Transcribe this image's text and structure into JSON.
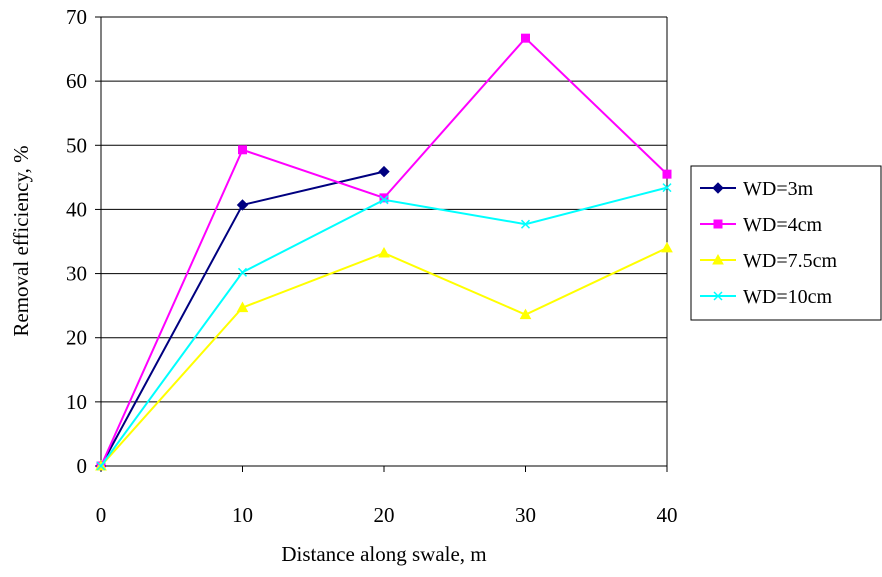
{
  "chart_data": {
    "type": "line",
    "title": "",
    "xlabel": "Distance along swale, m",
    "ylabel": "Removal efficiency, %",
    "xlim": [
      0,
      40
    ],
    "ylim": [
      0,
      70
    ],
    "x_ticks": [
      0,
      10,
      20,
      30,
      40
    ],
    "y_ticks": [
      0,
      10,
      20,
      30,
      40,
      50,
      60,
      70
    ],
    "grid": "horizontal",
    "legend_position": "right",
    "series": [
      {
        "name": "WD=3m",
        "color": "#000080",
        "marker": "diamond",
        "x": [
          0,
          10,
          20
        ],
        "y": [
          0,
          40.7,
          45.9
        ]
      },
      {
        "name": "WD=4cm",
        "color": "#ff00ff",
        "marker": "square",
        "x": [
          0,
          10,
          20,
          30,
          40
        ],
        "y": [
          0,
          49.3,
          41.8,
          66.7,
          45.5
        ]
      },
      {
        "name": "WD=7.5cm",
        "color": "#ffff00",
        "marker": "triangle",
        "x": [
          0,
          10,
          20,
          30,
          40
        ],
        "y": [
          0,
          24.7,
          33.2,
          23.6,
          34.0
        ]
      },
      {
        "name": "WD=10cm",
        "color": "#00ffff",
        "marker": "x",
        "x": [
          0,
          10,
          20,
          30,
          40
        ],
        "y": [
          0,
          30.2,
          41.5,
          37.7,
          43.4
        ]
      }
    ]
  }
}
